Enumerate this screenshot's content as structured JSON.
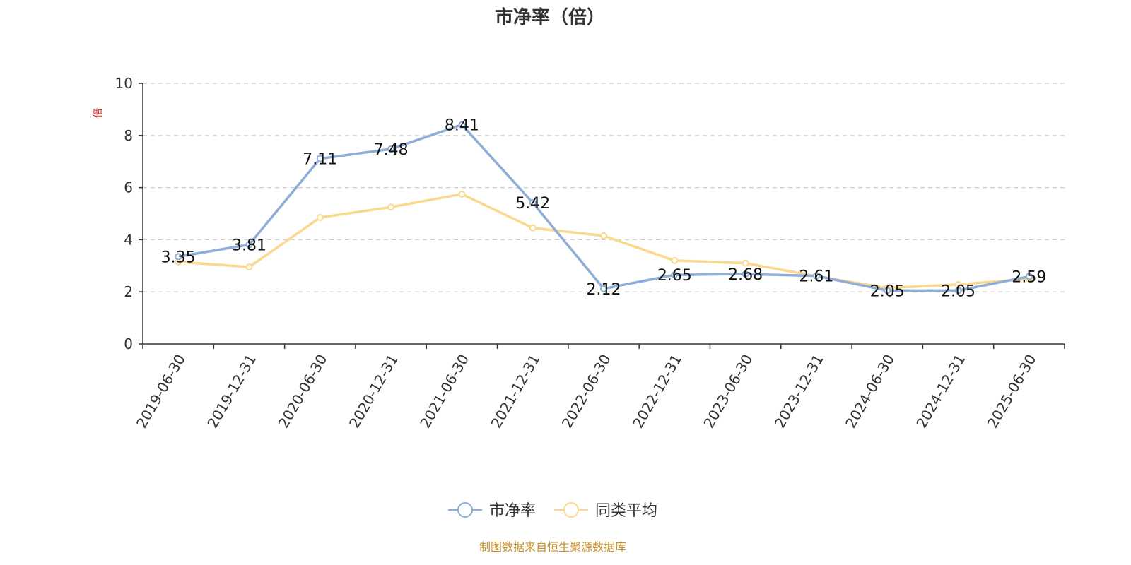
{
  "chart_data": {
    "type": "line",
    "title": "市净率（倍）",
    "ylabel": "倍",
    "xlabel": "",
    "ylim": [
      0,
      10
    ],
    "yticks": [
      0,
      2,
      4,
      6,
      8,
      10
    ],
    "grid": true,
    "legend_position": "bottom",
    "categories": [
      "2019-06-30",
      "2019-12-31",
      "2020-06-30",
      "2020-12-31",
      "2021-06-30",
      "2021-12-31",
      "2022-06-30",
      "2022-12-31",
      "2023-06-30",
      "2023-12-31",
      "2024-06-30",
      "2024-12-31",
      "2025-06-30"
    ],
    "series": [
      {
        "name": "市净率",
        "color": "#8eaed8",
        "values": [
          3.35,
          3.81,
          7.11,
          7.48,
          8.41,
          5.42,
          2.12,
          2.65,
          2.68,
          2.61,
          2.05,
          2.05,
          2.59
        ],
        "labels": [
          "3.35",
          "3.81",
          "7.11",
          "7.48",
          "8.41",
          "5.42",
          "2.12",
          "2.65",
          "2.68",
          "2.61",
          "2.05",
          "2.05",
          "2.59"
        ]
      },
      {
        "name": "同类平均",
        "color": "#fad98e",
        "values": [
          3.15,
          2.95,
          4.85,
          5.25,
          5.75,
          4.45,
          4.15,
          3.2,
          3.1,
          2.6,
          2.15,
          2.28,
          2.5
        ]
      }
    ]
  },
  "source_note": "制图数据来自恒生聚源数据库"
}
